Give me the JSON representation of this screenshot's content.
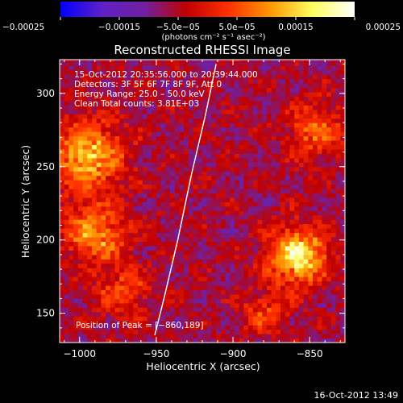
{
  "chart_data": {
    "type": "heatmap",
    "title": "Reconstructed RHESSI Image",
    "xlabel": "Heliocentric X (arcsec)",
    "ylabel": "Heliocentric Y (arcsec)",
    "xlim": [
      -1013,
      -827
    ],
    "ylim": [
      130,
      323
    ],
    "x_ticks": [
      -1000,
      -950,
      -900,
      -850
    ],
    "x_tick_labels": [
      "−1000",
      "−950",
      "−900",
      "−850"
    ],
    "y_ticks": [
      150,
      200,
      250,
      300
    ],
    "y_tick_labels": [
      "150",
      "200",
      "250",
      "300"
    ],
    "colorbar": {
      "range": [
        -0.00025,
        0.00025
      ],
      "ticks": [
        -0.00025,
        -0.00015,
        -5e-05,
        5e-05,
        0.00015,
        0.00025
      ],
      "tick_labels": [
        "−0.00025",
        "−0.00015",
        "−5.0e−05",
        "5.0e−05",
        "0.00015",
        "0.00025"
      ],
      "unit_label": "(photons cm⁻² s⁻¹ asec⁻²)",
      "colors": [
        "#0000ff",
        "#6020c8",
        "#7020a0",
        "#c00000",
        "#ff3000",
        "#ff9800",
        "#ffff60",
        "#ffffff"
      ]
    },
    "info_lines": [
      "15-Oct-2012 20:35:56.000 to 20:39:44.000",
      "Detectors: 3F 5F 6F 7F 8F 9F, Att 0",
      "Energy Range: 25.0 – 50.0 keV",
      "Clean     Total counts: 3.81E+03"
    ],
    "peak_label": "Position of Peak = [−860,189]",
    "sources": [
      {
        "x": -858,
        "y": 189,
        "value": 0.00025,
        "sigma": 13
      },
      {
        "x": -995,
        "y": 258,
        "value": 0.0002,
        "sigma": 16
      },
      {
        "x": -990,
        "y": 205,
        "value": 0.00016,
        "sigma": 14
      },
      {
        "x": -972,
        "y": 165,
        "value": 0.0001,
        "sigma": 12
      },
      {
        "x": -845,
        "y": 275,
        "value": 0.00012,
        "sigma": 13
      },
      {
        "x": -880,
        "y": 150,
        "value": 9e-05,
        "sigma": 11
      }
    ],
    "limb_curve": [
      {
        "x": -951,
        "y": 135
      },
      {
        "x": -945,
        "y": 160
      },
      {
        "x": -936,
        "y": 200
      },
      {
        "x": -927,
        "y": 245
      },
      {
        "x": -918,
        "y": 285
      },
      {
        "x": -911,
        "y": 320
      }
    ]
  },
  "footer": {
    "timestamp": "16-Oct-2012 13:49"
  }
}
